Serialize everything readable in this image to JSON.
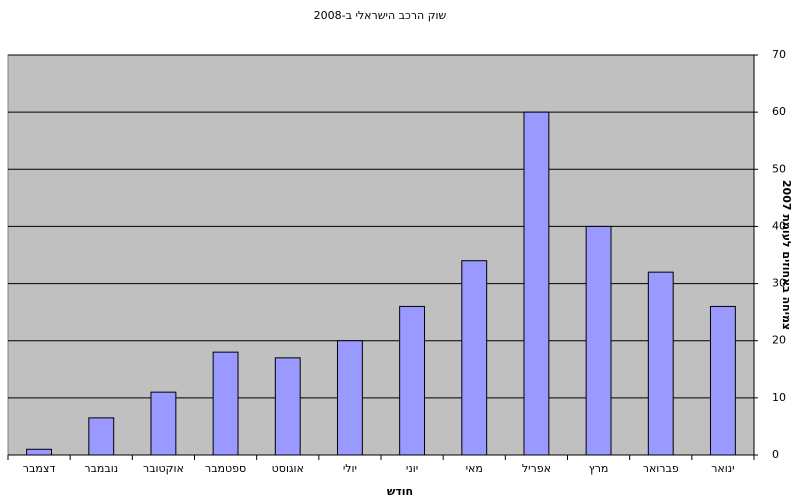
{
  "chart_data": {
    "type": "bar",
    "title": "שוק הרכב הישראלי ב-2008",
    "x_label": "חודש",
    "y_label": "צמיחה באחוזים לעומת 2007",
    "categories": [
      "ינואר",
      "פברואר",
      "מרץ",
      "אפריל",
      "מאי",
      "יוני",
      "יולי",
      "אוגוסט",
      "ספטמבר",
      "אוקטובר",
      "נובמבר",
      "דצמבר"
    ],
    "values": [
      26,
      32,
      40,
      60,
      34,
      26,
      20,
      17,
      18,
      11,
      6.5,
      1
    ],
    "color": "#9999ff",
    "plot_background": "#c0c0c0",
    "ylim": [
      0,
      70
    ],
    "yticks": [
      0,
      10,
      20,
      30,
      40,
      50,
      60,
      70
    ],
    "grid": true,
    "x_reversed": true,
    "y_axis_side": "right"
  }
}
